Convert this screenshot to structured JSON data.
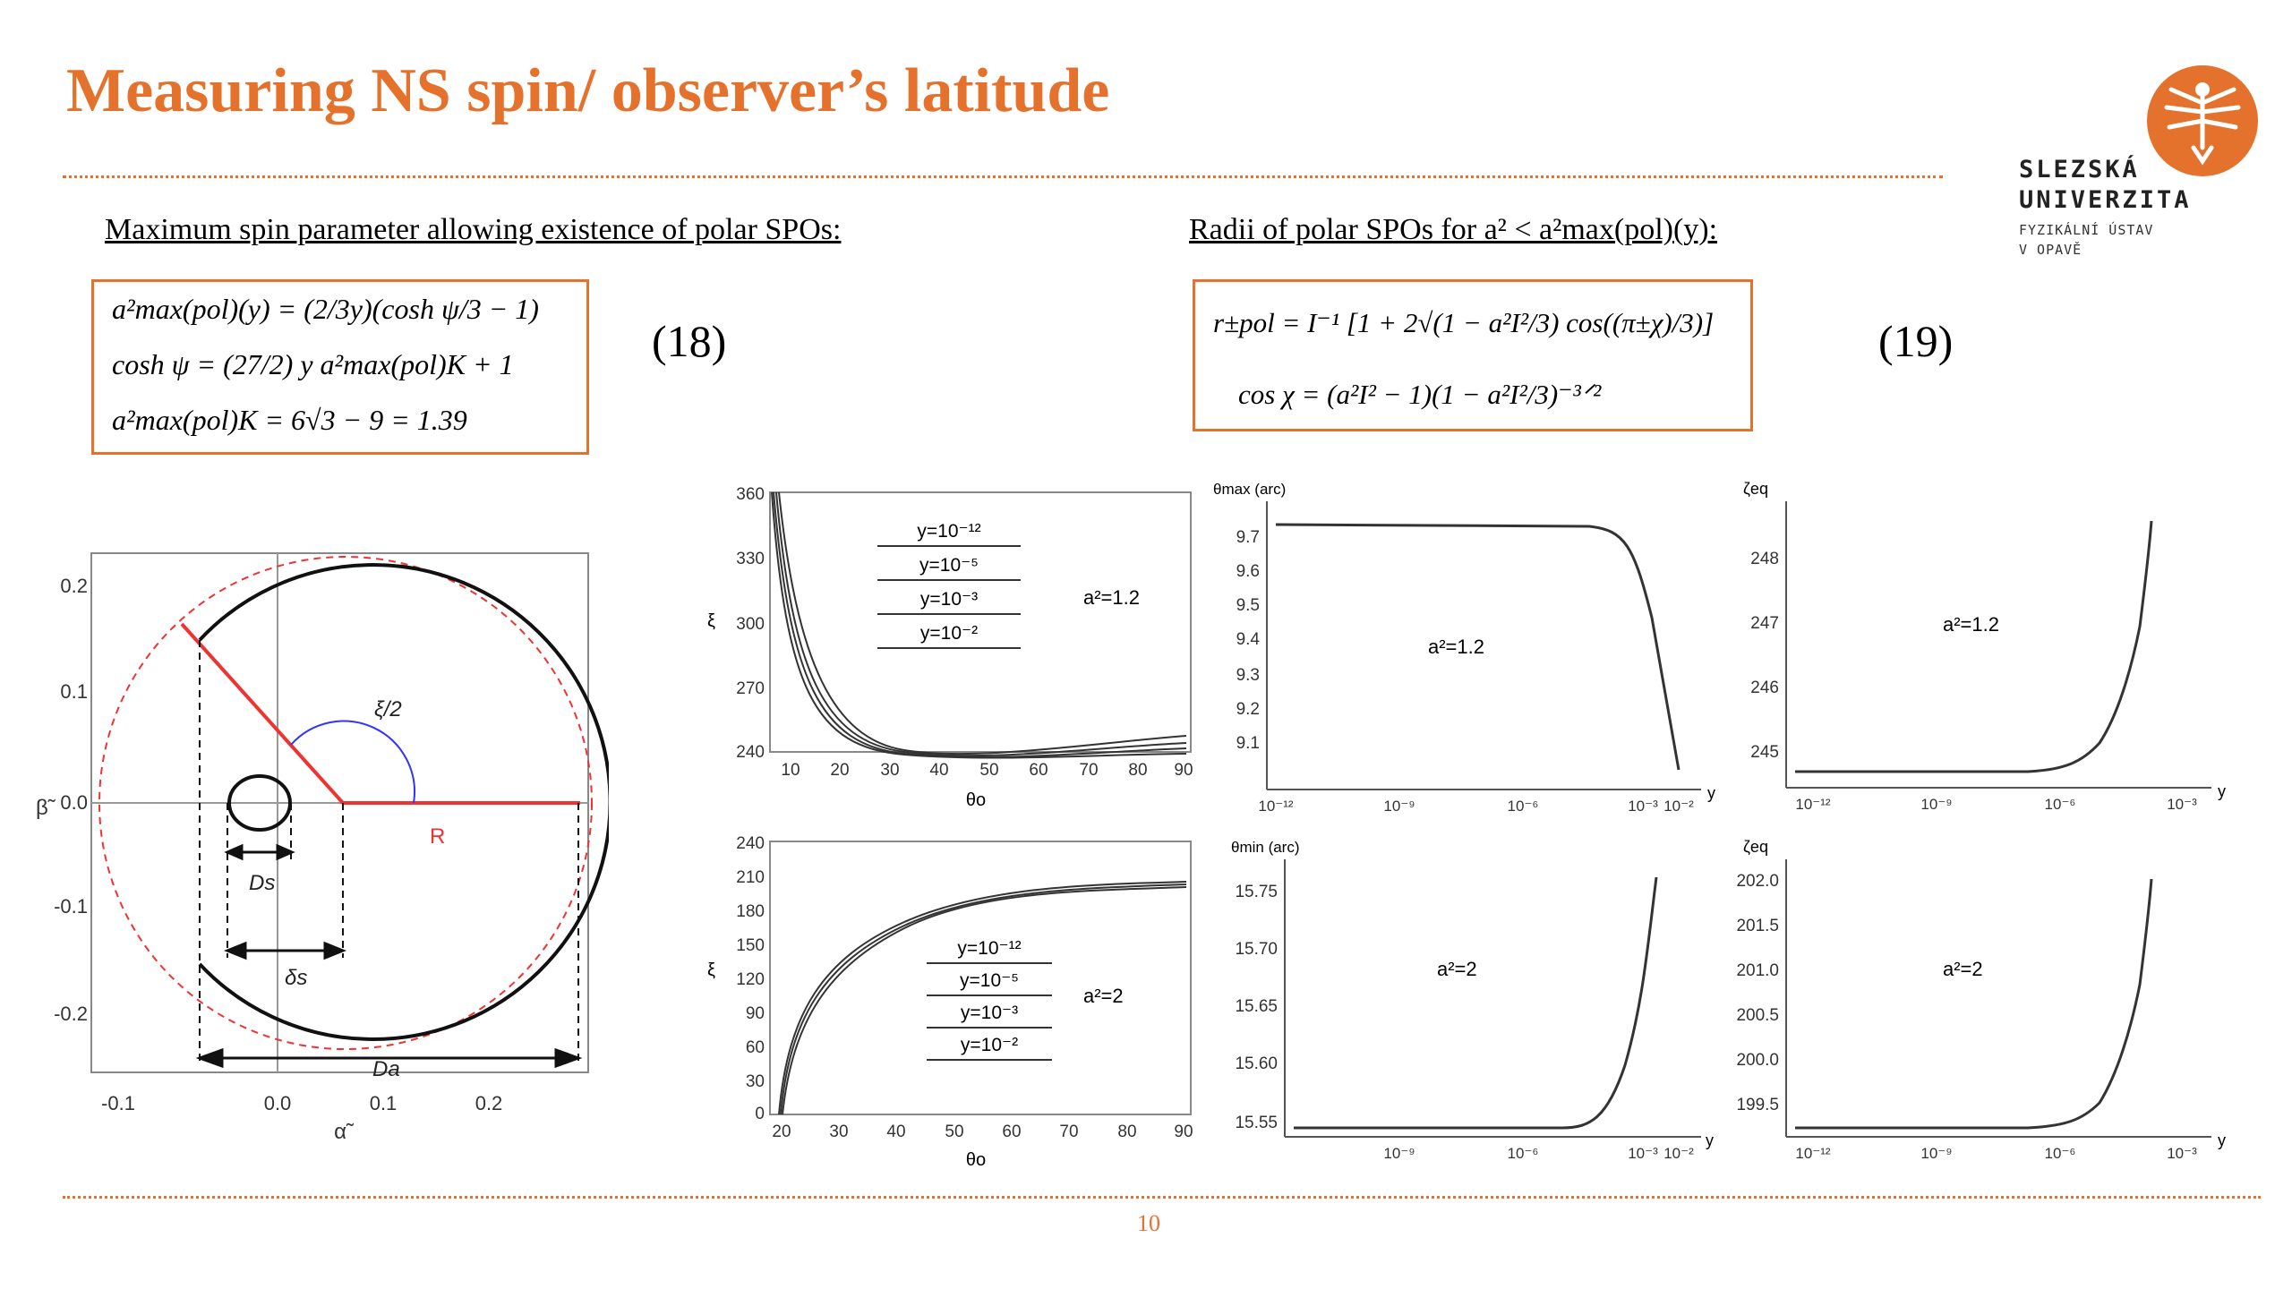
{
  "slide": {
    "title": "Measuring NS spin/ observer’s latitude",
    "page_number": "10"
  },
  "logo": {
    "line1": "SLEZSKÁ",
    "line2": "UNIVERZITA",
    "line3": "FYZIKÁLNÍ ÚSTAV",
    "line4": "V OPAVĚ",
    "color": "#e5722c"
  },
  "left_section": {
    "label": "Maximum spin parameter allowing existence of polar SPOs:",
    "eq_lines": [
      "a²max(pol)(y) = (2/3y)(cosh ψ/3 − 1)",
      "cosh ψ = (27/2) y a²max(pol)K + 1",
      "a²max(pol)K = 6√3 − 9 = 1.39"
    ],
    "eq_number": "(18)"
  },
  "right_section": {
    "label": "Radii of polar SPOs for a² < a²max(pol)(y):",
    "eq_lines": [
      "r±pol = I⁻¹ [1 + 2√(1 − a²I²/3) cos((π±χ)/3)]",
      "cos χ = (a²I² − 1)(1 − a²I²/3)⁻³ᐟ²"
    ],
    "eq_number": "(19)"
  },
  "charts": {
    "shadow": {
      "x_ticks": [
        "-0.1",
        "0.0",
        "0.1",
        "0.2"
      ],
      "y_ticks": [
        "0.2",
        "0.1",
        "0.0",
        "-0.1",
        "-0.2"
      ],
      "xlabel": "α̃",
      "ylabel": "β̃",
      "angle_label": "ξ/2",
      "radius_label": "R",
      "ds_label": "Ds",
      "delta_label": "δs",
      "da_label": "Da"
    },
    "xi_top": {
      "x_ticks": [
        "10",
        "20",
        "30",
        "40",
        "50",
        "60",
        "70",
        "80",
        "90"
      ],
      "y_ticks": [
        "360",
        "330",
        "300",
        "270",
        "240"
      ],
      "xlabel": "θo",
      "ylabel": "ξ",
      "legend": [
        "y=10⁻¹²",
        "y=10⁻⁵",
        "y=10⁻³",
        "y=10⁻²"
      ],
      "annotation": "a²=1.2"
    },
    "xi_bottom": {
      "x_ticks": [
        "20",
        "30",
        "40",
        "50",
        "60",
        "70",
        "80",
        "90"
      ],
      "y_ticks": [
        "240",
        "210",
        "180",
        "150",
        "120",
        "90",
        "60",
        "30",
        "0"
      ],
      "xlabel": "θo",
      "ylabel": "ξ",
      "legend": [
        "y=10⁻¹²",
        "y=10⁻⁵",
        "y=10⁻³",
        "y=10⁻²"
      ],
      "annotation": "a²=2"
    },
    "theta_max": {
      "ylabel": "θmax (arc)",
      "y_ticks": [
        "9.7",
        "9.6",
        "9.5",
        "9.4",
        "9.3",
        "9.2",
        "9.1"
      ],
      "x_ticks": [
        "10⁻¹²",
        "10⁻⁹",
        "10⁻⁶",
        "10⁻³",
        "10⁻²"
      ],
      "xlabel": "y",
      "annotation": "a²=1.2"
    },
    "theta_min": {
      "ylabel": "θmin (arc)",
      "y_ticks": [
        "15.75",
        "15.70",
        "15.65",
        "15.60",
        "15.55"
      ],
      "x_ticks": [
        "10⁻⁹",
        "10⁻⁶",
        "10⁻³",
        "10⁻²"
      ],
      "xlabel": "y",
      "annotation": "a²=2"
    },
    "zeta_top": {
      "ylabel": "ζeq",
      "y_ticks": [
        "248",
        "247",
        "246",
        "245"
      ],
      "x_ticks": [
        "10⁻¹²",
        "10⁻⁹",
        "10⁻⁶",
        "10⁻³"
      ],
      "xlabel": "y",
      "annotation": "a²=1.2"
    },
    "zeta_bottom": {
      "ylabel": "ζeq",
      "y_ticks": [
        "202.0",
        "201.5",
        "201.0",
        "200.5",
        "200.0",
        "199.5"
      ],
      "x_ticks": [
        "10⁻¹²",
        "10⁻⁹",
        "10⁻⁶",
        "10⁻³"
      ],
      "xlabel": "y",
      "annotation": "a²=2"
    }
  }
}
